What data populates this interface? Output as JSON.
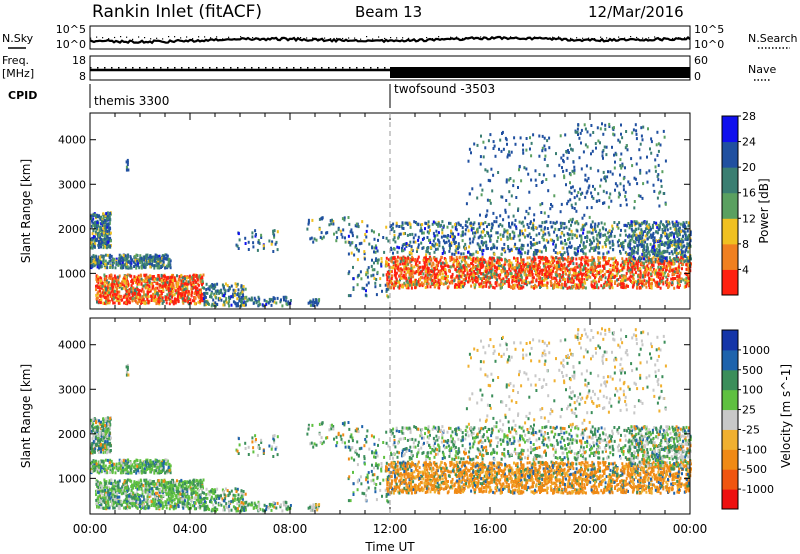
{
  "header": {
    "station": "Rankin Inlet (fitACF)",
    "beam": "Beam 13",
    "date": "12/Mar/2016"
  },
  "noise_panel": {
    "left_label": "N.Sky",
    "right_label": "N.Search",
    "left_ticks": [
      "10^5",
      "10^0"
    ],
    "right_ticks": [
      "10^5",
      "10^0"
    ]
  },
  "freq_panel": {
    "left_label_1": "Freq.",
    "left_label_2": "[MHz]",
    "right_label": "Nave",
    "left_ticks": [
      "18",
      "8"
    ],
    "right_ticks": [
      "60",
      "0"
    ]
  },
  "cpid_panel": {
    "label": "CPID",
    "modes": [
      {
        "name": "themis 3300",
        "start_hour": 0
      },
      {
        "name": "twofsound -3503",
        "start_hour": 12
      }
    ]
  },
  "chart_data": [
    {
      "type": "heatmap",
      "title": "Power",
      "xlabel": "",
      "ylabel": "Slant Range [km]",
      "xlim": [
        0,
        24
      ],
      "ylim": [
        200,
        4600
      ],
      "y_ticks": [
        "1000",
        "2000",
        "3000",
        "4000"
      ],
      "colorbar_label": "Power [dB]",
      "colorbar_ticks": [
        "4",
        "8",
        "12",
        "16",
        "20",
        "24",
        "28"
      ],
      "colorbar_colors": [
        "#1010ee",
        "#2050a0",
        "#3a7e72",
        "#5aa060",
        "#f0c020",
        "#f08020",
        "#ff2010"
      ]
    },
    {
      "type": "heatmap",
      "title": "Velocity",
      "xlabel": "Time UT",
      "ylabel": "Slant Range [km]",
      "xlim": [
        0,
        24
      ],
      "ylim": [
        200,
        4600
      ],
      "x_ticks": [
        "00:00",
        "04:00",
        "08:00",
        "12:00",
        "16:00",
        "20:00",
        "00:00"
      ],
      "y_ticks": [
        "1000",
        "2000",
        "3000",
        "4000"
      ],
      "colorbar_label": "Velocity [m s^-1]",
      "colorbar_ticks": [
        "1000",
        "500",
        "100",
        "25",
        "-25",
        "-100",
        "-500",
        "-1000"
      ],
      "colorbar_colors": [
        "#1535a8",
        "#1e63ac",
        "#3b8e5a",
        "#5fc040",
        "#c8c8c8",
        "#f0b030",
        "#f08a15",
        "#f05510",
        "#ee1010"
      ]
    }
  ]
}
